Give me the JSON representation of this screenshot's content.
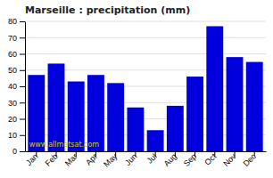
{
  "chart_data": {
    "type": "bar",
    "title": "Marseille : precipitation (mm)",
    "categories": [
      "Jan",
      "Feb",
      "Mar",
      "Apr",
      "May",
      "Jun",
      "Jul",
      "Aug",
      "Sep",
      "Oct",
      "Nov",
      "Dec"
    ],
    "values": [
      47,
      54,
      43,
      47,
      42,
      27,
      13,
      28,
      46,
      77,
      58,
      55
    ],
    "color": "#0000dd",
    "ylim": [
      0,
      80
    ],
    "yticks": [
      0,
      10,
      20,
      30,
      40,
      50,
      60,
      70,
      80
    ],
    "grid": true,
    "annotations": [
      {
        "text": "www.allmetsat.com",
        "color": "#cccc00"
      }
    ]
  }
}
